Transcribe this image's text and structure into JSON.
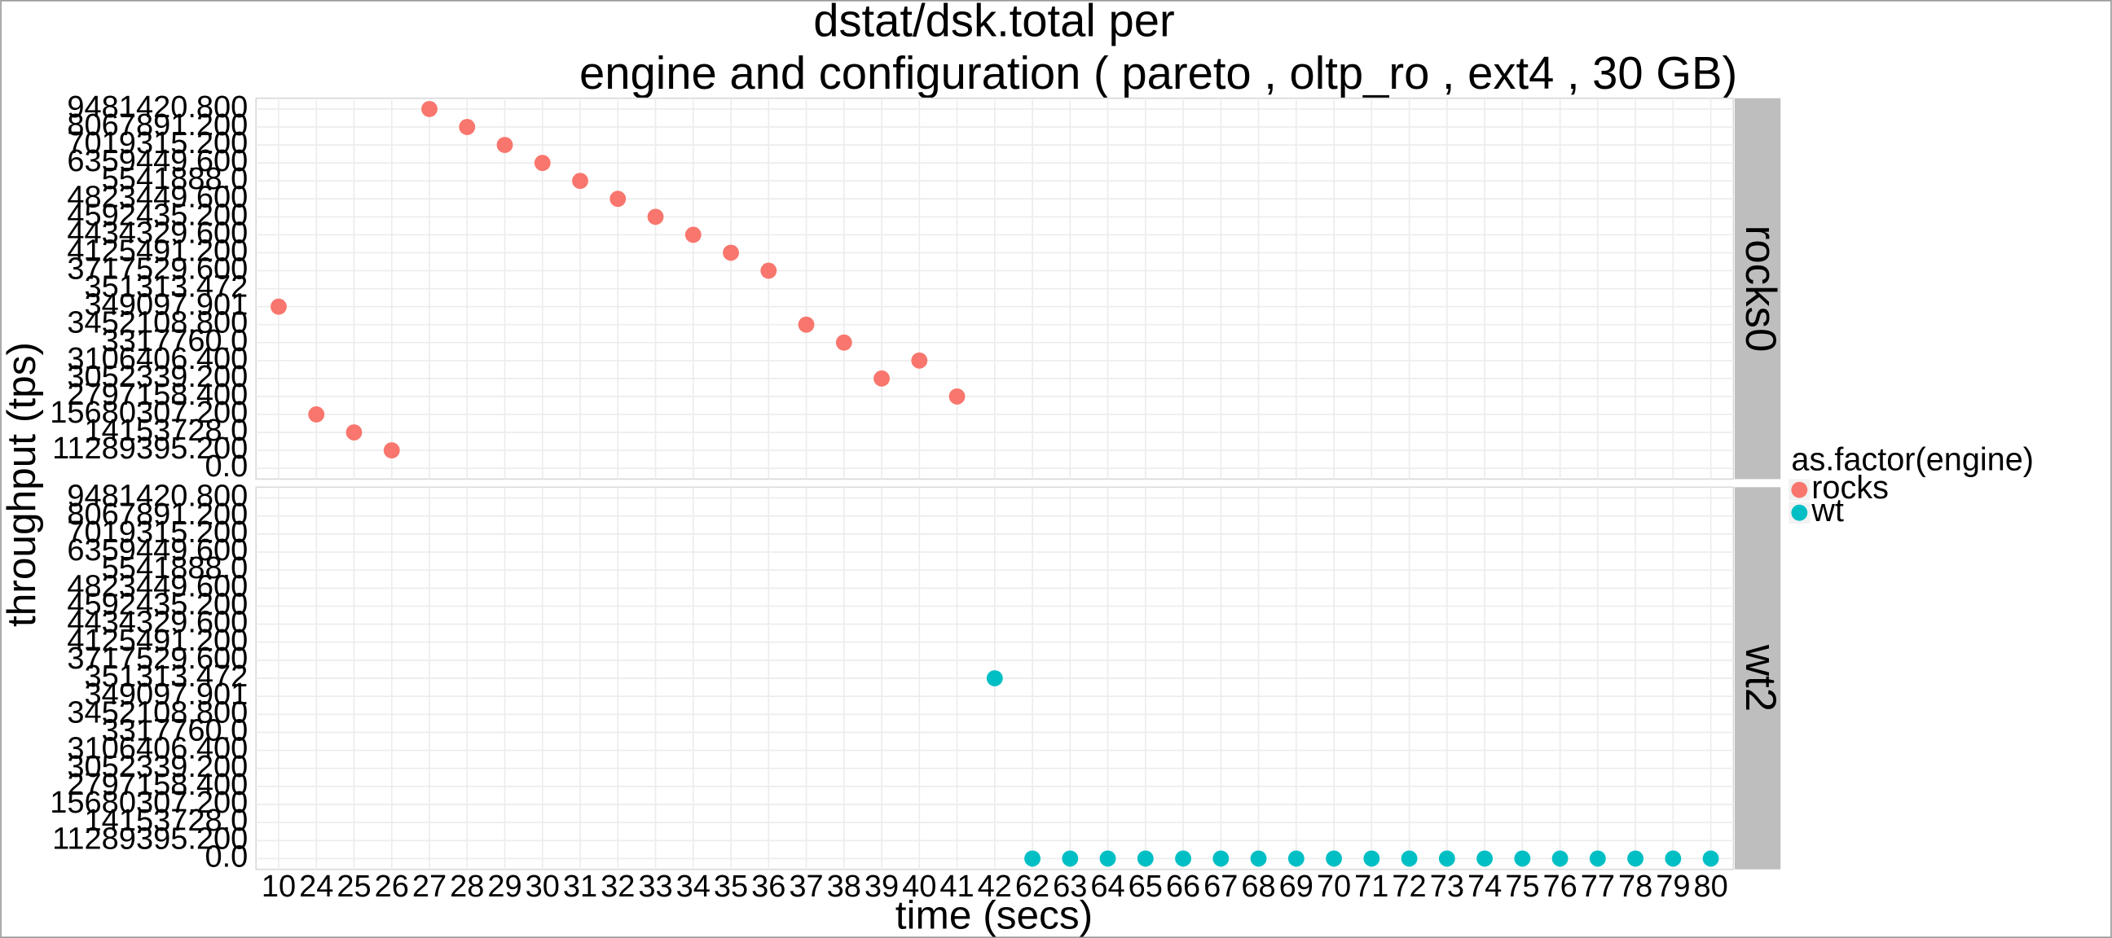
{
  "chart_data": {
    "type": "scatter",
    "title_lines": [
      "dstat/dsk.total per",
      "engine and configuration ( pareto , oltp_ro , ext4 ,  30 GB)"
    ],
    "x_label": "time (secs)",
    "y_label": "throughput (tps)",
    "legend_title": "as.factor(engine)",
    "xcategories": [
      "10",
      "24",
      "25",
      "26",
      "27",
      "28",
      "29",
      "30",
      "31",
      "32",
      "33",
      "34",
      "35",
      "36",
      "37",
      "38",
      "39",
      "40",
      "41",
      "42",
      "62",
      "63",
      "64",
      "65",
      "66",
      "67",
      "68",
      "69",
      "70",
      "71",
      "72",
      "73",
      "74",
      "75",
      "76",
      "77",
      "78",
      "79",
      "80"
    ],
    "ycategories": [
      "0.0",
      "11289395.200",
      "14153728.0",
      "15680307.200",
      "2797158.400",
      "3052339.200",
      "3106406.400",
      "3317760.0",
      "3452108.800",
      "349097.901",
      "351313.472",
      "3717529.600",
      "4125491.200",
      "4434329.600",
      "4592435.200",
      "4823449.600",
      "5541888.0",
      "6359449.600",
      "7019315.200",
      "8067891.200",
      "9481420.800"
    ],
    "series": [
      {
        "name": "rocks",
        "panel": "rocks0",
        "color": "#F8766D",
        "x": [
          "10",
          "24",
          "25",
          "26",
          "27",
          "28",
          "29",
          "30",
          "31",
          "32",
          "33",
          "34",
          "35",
          "36",
          "37",
          "38",
          "39",
          "40",
          "41"
        ],
        "values": [
          "349097.901",
          "15680307.200",
          "14153728.0",
          "11289395.200",
          "9481420.800",
          "8067891.200",
          "7019315.200",
          "6359449.600",
          "5541888.0",
          "4823449.600",
          "4592435.200",
          "4434329.600",
          "4125491.200",
          "3717529.600",
          "3452108.800",
          "3317760.0",
          "3052339.200",
          "3106406.400",
          "2797158.400"
        ]
      },
      {
        "name": "wt",
        "panel": "wt2",
        "color": "#00BFC4",
        "x": [
          "42",
          "62",
          "63",
          "64",
          "65",
          "66",
          "67",
          "68",
          "69",
          "70",
          "71",
          "72",
          "73",
          "74",
          "75",
          "76",
          "77",
          "78",
          "79",
          "80"
        ],
        "values": [
          "351313.472",
          "0.0",
          "0.0",
          "0.0",
          "0.0",
          "0.0",
          "0.0",
          "0.0",
          "0.0",
          "0.0",
          "0.0",
          "0.0",
          "0.0",
          "0.0",
          "0.0",
          "0.0",
          "0.0",
          "0.0",
          "0.0",
          "0.0"
        ]
      }
    ],
    "grid": true
  }
}
